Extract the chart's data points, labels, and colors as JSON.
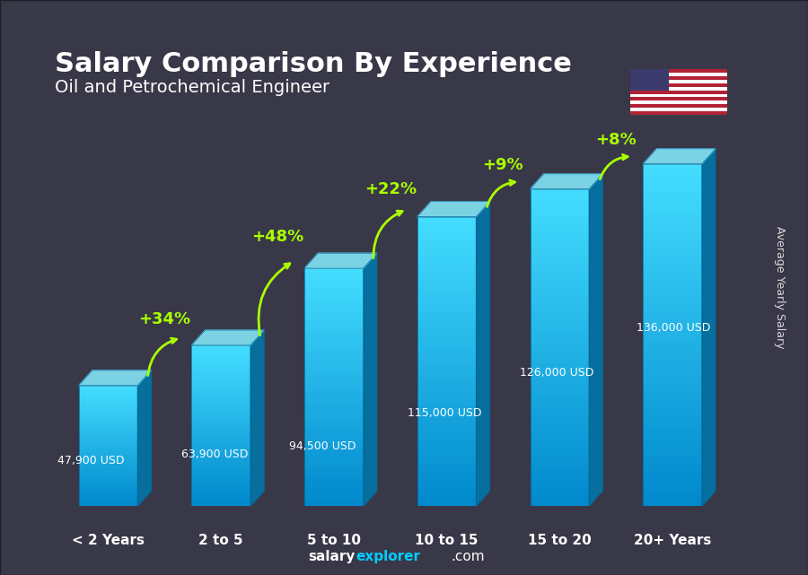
{
  "title": "Salary Comparison By Experience",
  "subtitle": "Oil and Petrochemical Engineer",
  "ylabel": "Average Yearly Salary",
  "xlabel_labels": [
    "< 2 Years",
    "2 to 5",
    "5 to 10",
    "10 to 15",
    "15 to 20",
    "20+ Years"
  ],
  "values": [
    47900,
    63900,
    94500,
    115000,
    126000,
    136000
  ],
  "value_labels": [
    "47,900 USD",
    "63,900 USD",
    "94,500 USD",
    "115,000 USD",
    "126,000 USD",
    "136,000 USD"
  ],
  "pct_labels": [
    "+34%",
    "+48%",
    "+22%",
    "+9%",
    "+8%"
  ],
  "bar_color_top": "#00d4ff",
  "bar_color_mid": "#00aadd",
  "bar_color_bottom": "#0088bb",
  "bar_color_side": "#006699",
  "bg_color": "#1a1a2e",
  "title_color": "#ffffff",
  "subtitle_color": "#ffffff",
  "pct_color": "#aaff00",
  "value_color": "#ffffff",
  "xlabel_color": "#ffffff",
  "footer_text": "salaryexplorer.com",
  "footer_salary": "salary",
  "footer_explorer": "explorer",
  "side_label": "Average Yearly Salary"
}
